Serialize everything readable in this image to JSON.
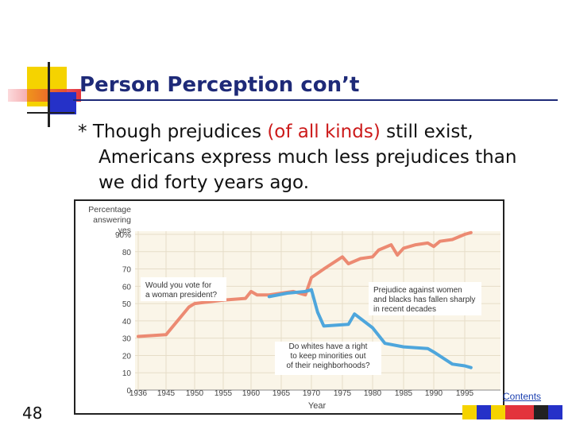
{
  "slide": {
    "title": "Person Perception con’t",
    "bullet": {
      "marker": "*",
      "text_before": "Though prejudices",
      "text_highlight": "(of all kinds)",
      "text_after": "still exist,",
      "line2": "Americans express much less prejudices than",
      "line3": "we did forty years ago."
    },
    "slide_number": "48",
    "contents_link": "Contents",
    "colors": {
      "title": "#1e2a78",
      "highlight": "#cc1a1a",
      "series_woman": "#ec8a72",
      "series_whites": "#4ea6dc",
      "chart_bg": "#faf5e8"
    }
  },
  "chart_data": {
    "type": "line",
    "ylabel": "Percentage answering yes",
    "xlabel": "Year",
    "ylim": [
      0,
      90
    ],
    "xlim": [
      1936,
      1996
    ],
    "y_ticks": [
      "0",
      "10",
      "20",
      "30",
      "40",
      "50",
      "60",
      "70",
      "80",
      "90%"
    ],
    "x_ticks": [
      "1936",
      "1945",
      "1950",
      "1955",
      "1960",
      "1965",
      "1970",
      "1975",
      "1980",
      "1985",
      "1990",
      "1995"
    ],
    "grid": true,
    "series": [
      {
        "name": "Would you vote for a woman president?",
        "points": [
          [
            1936,
            31
          ],
          [
            1945,
            32
          ],
          [
            1949,
            48
          ],
          [
            1950,
            50
          ],
          [
            1955,
            52
          ],
          [
            1959,
            53
          ],
          [
            1960,
            57
          ],
          [
            1961,
            55
          ],
          [
            1963,
            55
          ],
          [
            1967,
            57
          ],
          [
            1969,
            55
          ],
          [
            1970,
            65
          ],
          [
            1972,
            70
          ],
          [
            1975,
            77
          ],
          [
            1976,
            73
          ],
          [
            1978,
            76
          ],
          [
            1980,
            77
          ],
          [
            1981,
            81
          ],
          [
            1983,
            84
          ],
          [
            1984,
            78
          ],
          [
            1985,
            82
          ],
          [
            1987,
            84
          ],
          [
            1989,
            85
          ],
          [
            1990,
            83
          ],
          [
            1991,
            86
          ],
          [
            1993,
            87
          ],
          [
            1995,
            90
          ],
          [
            1996,
            91
          ]
        ]
      },
      {
        "name": "Do whites have a right to keep minorities out of their neighborhoods?",
        "points": [
          [
            1963,
            54
          ],
          [
            1966,
            56
          ],
          [
            1969,
            57
          ],
          [
            1970,
            58
          ],
          [
            1971,
            45
          ],
          [
            1972,
            37
          ],
          [
            1976,
            38
          ],
          [
            1977,
            44
          ],
          [
            1980,
            36
          ],
          [
            1982,
            27
          ],
          [
            1985,
            25
          ],
          [
            1989,
            24
          ],
          [
            1990,
            22
          ],
          [
            1993,
            15
          ],
          [
            1995,
            14
          ],
          [
            1996,
            13
          ]
        ]
      }
    ],
    "annotations": [
      "Prejudice against women and blacks has fallen sharply in recent decades"
    ]
  }
}
